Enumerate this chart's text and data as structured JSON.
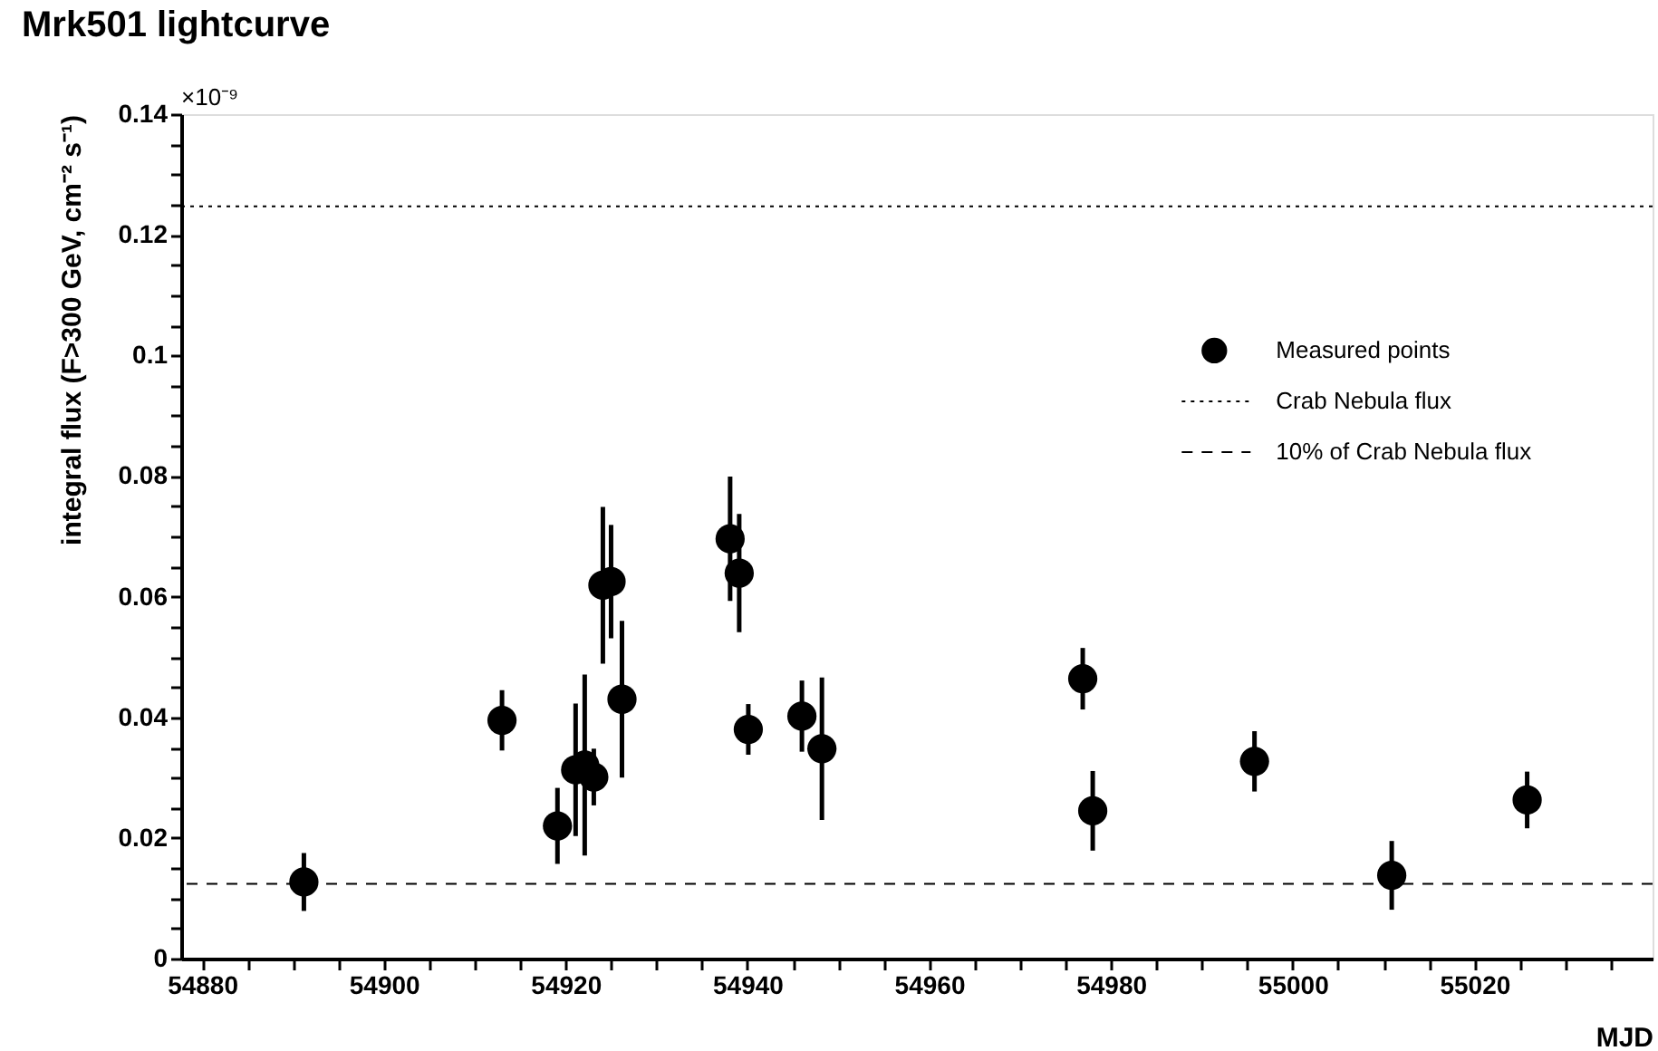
{
  "chart_data": {
    "type": "scatter",
    "title": "Mrk501 lightcurve",
    "xlabel": "MJD",
    "ylabel": "integral flux (F>300 GeV, cm⁻² s⁻¹)",
    "annotations": [
      "×10⁻⁹"
    ],
    "series": [
      {
        "name": "Measured points",
        "color": "#000000",
        "x": [
          54891.2,
          54913.0,
          54919.1,
          54921.1,
          54922.1,
          54923.1,
          54924.1,
          54925.0,
          54926.2,
          54938.1,
          54939.1,
          54940.1,
          54946.0,
          54948.2,
          54976.9,
          54978.0,
          54995.8,
          55010.9,
          55025.8
        ],
        "values": [
          0.0127,
          0.0395,
          0.022,
          0.0313,
          0.0321,
          0.0301,
          0.0619,
          0.0625,
          0.043,
          0.0696,
          0.0639,
          0.038,
          0.0402,
          0.0348,
          0.0464,
          0.0245,
          0.0327,
          0.0138,
          0.0263
        ],
        "errors": [
          0.0048,
          0.005,
          0.0063,
          0.011,
          0.015,
          0.0047,
          0.013,
          0.0094,
          0.013,
          0.0103,
          0.0098,
          0.0042,
          0.0059,
          0.0118,
          0.0051,
          0.0066,
          0.005,
          0.0057,
          0.0047
        ]
      }
    ],
    "ref_lines": [
      {
        "axis": "y",
        "value": 0.1247,
        "label": "Crab Nebula flux",
        "line_style": "dotted",
        "color": "#000000"
      },
      {
        "axis": "y",
        "value": 0.0124,
        "label": "10% of Crab Nebula flux",
        "line_style": "dashed",
        "color": "#000000"
      }
    ],
    "marker": "circle",
    "legend": "top right",
    "xlim": [
      54877.7,
      55039.6
    ],
    "ylim": [
      0,
      0.14
    ],
    "xticks": [
      54880,
      {
        "value": 54885,
        "label": null
      },
      {
        "value": 54890,
        "label": null
      },
      {
        "value": 54895,
        "label": null
      },
      54900,
      {
        "value": 54905,
        "label": null
      },
      {
        "value": 54910,
        "label": null
      },
      {
        "value": 54915,
        "label": null
      },
      54920,
      {
        "value": 54925,
        "label": null
      },
      {
        "value": 54930,
        "label": null
      },
      {
        "value": 54935,
        "label": null
      },
      54940,
      {
        "value": 54945,
        "label": null
      },
      {
        "value": 54950,
        "label": null
      },
      {
        "value": 54955,
        "label": null
      },
      54960,
      {
        "value": 54965,
        "label": null
      },
      {
        "value": 54970,
        "label": null
      },
      {
        "value": 54975,
        "label": null
      },
      54980,
      {
        "value": 54985,
        "label": null
      },
      {
        "value": 54990,
        "label": null
      },
      {
        "value": 54995,
        "label": null
      },
      55000,
      {
        "value": 55005,
        "label": null
      },
      {
        "value": 55010,
        "label": null
      },
      {
        "value": 55015,
        "label": null
      },
      55020,
      {
        "value": 55025,
        "label": null
      },
      {
        "value": 55030,
        "label": null
      },
      {
        "value": 55035,
        "label": null
      }
    ],
    "yticks": [
      0,
      {
        "value": 0.005,
        "label": null
      },
      {
        "value": 0.01,
        "label": null
      },
      {
        "value": 0.015,
        "label": null
      },
      0.02,
      {
        "value": 0.025,
        "label": null
      },
      {
        "value": 0.03,
        "label": null
      },
      {
        "value": 0.035,
        "label": null
      },
      0.04,
      {
        "value": 0.045,
        "label": null
      },
      {
        "value": 0.05,
        "label": null
      },
      {
        "value": 0.055,
        "label": null
      },
      0.06,
      {
        "value": 0.065,
        "label": null
      },
      {
        "value": 0.07,
        "label": null
      },
      {
        "value": 0.075,
        "label": null
      },
      0.08,
      {
        "value": 0.085,
        "label": null
      },
      {
        "value": 0.09,
        "label": null
      },
      {
        "value": 0.095,
        "label": null
      },
      0.1,
      {
        "value": 0.105,
        "label": null
      },
      {
        "value": 0.11,
        "label": null
      },
      {
        "value": 0.115,
        "label": null
      },
      0.12,
      {
        "value": 0.125,
        "label": null
      },
      {
        "value": 0.13,
        "label": null
      },
      {
        "value": 0.135,
        "label": null
      },
      0.14
    ]
  }
}
